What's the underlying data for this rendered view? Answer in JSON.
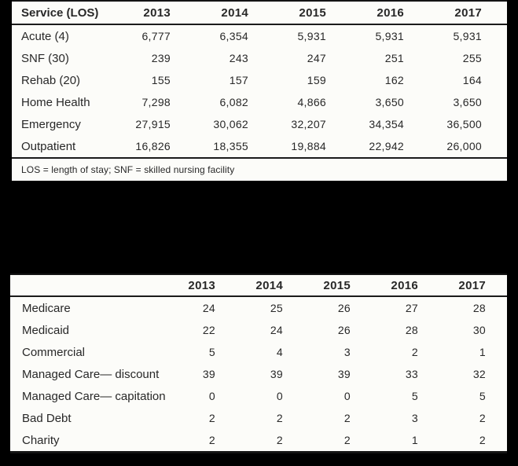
{
  "page": {
    "background_color": "#000000",
    "table_background_color": "#fcfcf9",
    "rule_color": "#1b1b1b",
    "text_color": "#282828"
  },
  "chart_data": [
    {
      "type": "table",
      "name": "service-utilization-volume",
      "columns": [
        "Service (LOS)",
        "2013",
        "2014",
        "2015",
        "2016",
        "2017"
      ],
      "rows": [
        [
          "Acute (4)",
          "6,777",
          "6,354",
          "5,931",
          "5,931",
          "5,931"
        ],
        [
          "SNF (30)",
          "239",
          "243",
          "247",
          "251",
          "255"
        ],
        [
          "Rehab (20)",
          "155",
          "157",
          "159",
          "162",
          "164"
        ],
        [
          "Home Health",
          "7,298",
          "6,082",
          "4,866",
          "3,650",
          "3,650"
        ],
        [
          "Emergency",
          "27,915",
          "30,062",
          "32,207",
          "34,354",
          "36,500"
        ],
        [
          "Outpatient",
          "16,826",
          "18,355",
          "19,884",
          "22,942",
          "26,000"
        ]
      ],
      "footnote": "LOS = length of stay; SNF = skilled nursing facility"
    },
    {
      "type": "table",
      "name": "payer-mix",
      "columns": [
        "",
        "2013",
        "2014",
        "2015",
        "2016",
        "2017"
      ],
      "rows": [
        [
          "Medicare",
          "24",
          "25",
          "26",
          "27",
          "28"
        ],
        [
          "Medicaid",
          "22",
          "24",
          "26",
          "28",
          "30"
        ],
        [
          "Commercial",
          "5",
          "4",
          "3",
          "2",
          "1"
        ],
        [
          "Managed Care— discount",
          "39",
          "39",
          "39",
          "33",
          "32"
        ],
        [
          "Managed Care— capitation",
          "0",
          "0",
          "0",
          "5",
          "5"
        ],
        [
          "Bad Debt",
          "2",
          "2",
          "2",
          "3",
          "2"
        ],
        [
          "Charity",
          "2",
          "2",
          "2",
          "1",
          "2"
        ]
      ]
    }
  ]
}
